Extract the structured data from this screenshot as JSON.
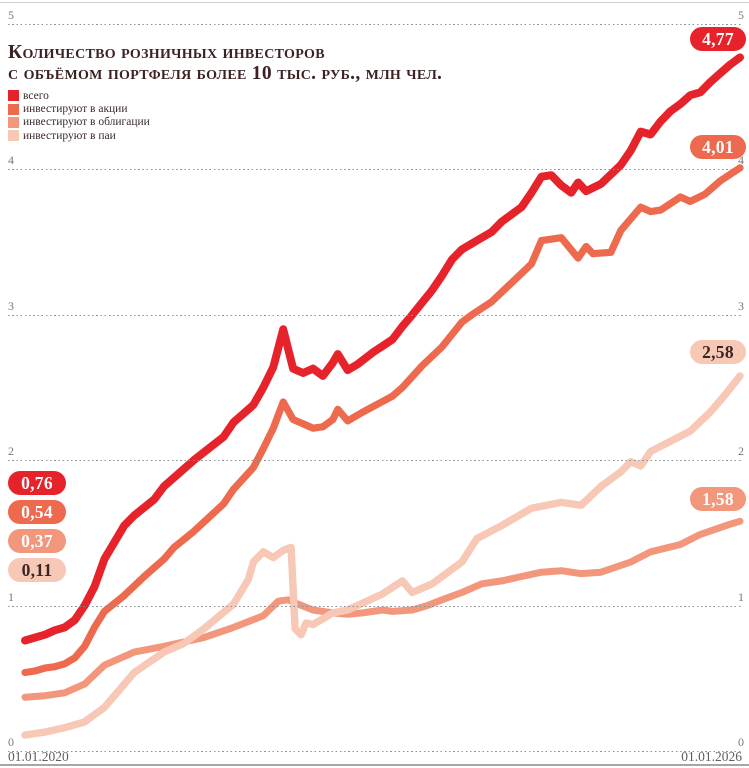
{
  "title": {
    "line1": "Количество розничных инвесторов",
    "line2": "с объёмом портфеля более 10 тыс. руб., млн чел."
  },
  "legend": {
    "items": [
      {
        "label": "всего",
        "color": "#e6232a"
      },
      {
        "label": "инвестируют в акции",
        "color": "#ed6a4e"
      },
      {
        "label": "инвестируют в облигации",
        "color": "#f2977c"
      },
      {
        "label": "инвестируют в паи",
        "color": "#f7c8b5"
      }
    ]
  },
  "x_axis": {
    "start_label": "01.01.2020",
    "end_label": "01.01.2026"
  },
  "badges": {
    "start": [
      {
        "text": "0,76",
        "bg": "#e6232a",
        "fg": "#ffffff"
      },
      {
        "text": "0,54",
        "bg": "#ed6a4e",
        "fg": "#ffffff"
      },
      {
        "text": "0,37",
        "bg": "#f2977c",
        "fg": "#ffffff"
      },
      {
        "text": "0,11",
        "bg": "#f7c8b5",
        "fg": "#3b2424"
      }
    ],
    "end": [
      {
        "text": "4,77",
        "bg": "#e6232a",
        "fg": "#ffffff"
      },
      {
        "text": "4,01",
        "bg": "#ed6a4e",
        "fg": "#ffffff"
      },
      {
        "text": "2,58",
        "bg": "#f7c8b5",
        "fg": "#3b2424"
      },
      {
        "text": "1,58",
        "bg": "#f2977c",
        "fg": "#ffffff"
      }
    ]
  },
  "chart_data": {
    "type": "line",
    "title": "Количество розничных инвесторов с объёмом портфеля более 10 тыс. руб., млн чел.",
    "xlabel": "",
    "ylabel": "млн чел.",
    "x_unit": "months since 01.01.2020",
    "x_range": [
      0,
      72
    ],
    "ylim": [
      0,
      5
    ],
    "y_ticks": [
      0,
      1,
      2,
      3,
      4,
      5
    ],
    "grid": "horizontal dashed, tick labels on both sides",
    "legend_position": "top-left",
    "series": [
      {
        "id": "obligacii",
        "name": "инвестируют в облигации",
        "color": "#f2977c",
        "first_value": 0.37,
        "last_value": 1.58,
        "points": [
          [
            0,
            0.37
          ],
          [
            2,
            0.38
          ],
          [
            4,
            0.4
          ],
          [
            6,
            0.46
          ],
          [
            8,
            0.59
          ],
          [
            11,
            0.68
          ],
          [
            14,
            0.72
          ],
          [
            18,
            0.78
          ],
          [
            21,
            0.85
          ],
          [
            24,
            0.93
          ],
          [
            25.5,
            1.03
          ],
          [
            26.5,
            1.04
          ],
          [
            27.5,
            1.01
          ],
          [
            29,
            0.97
          ],
          [
            31,
            0.95
          ],
          [
            32.5,
            0.94
          ],
          [
            34,
            0.95
          ],
          [
            36,
            0.97
          ],
          [
            37,
            0.96
          ],
          [
            39,
            0.97
          ],
          [
            40.5,
            1.0
          ],
          [
            42,
            1.04
          ],
          [
            44,
            1.09
          ],
          [
            46,
            1.15
          ],
          [
            48,
            1.17
          ],
          [
            50,
            1.2
          ],
          [
            52,
            1.23
          ],
          [
            54,
            1.24
          ],
          [
            56,
            1.22
          ],
          [
            58,
            1.23
          ],
          [
            61,
            1.3
          ],
          [
            63,
            1.37
          ],
          [
            66,
            1.42
          ],
          [
            68,
            1.49
          ],
          [
            71,
            1.56
          ],
          [
            72,
            1.58
          ]
        ]
      },
      {
        "id": "pai",
        "name": "инвестируют в паи",
        "color": "#f7c8b5",
        "first_value": 0.11,
        "last_value": 2.58,
        "points": [
          [
            0,
            0.11
          ],
          [
            2,
            0.13
          ],
          [
            4,
            0.16
          ],
          [
            6,
            0.2
          ],
          [
            8,
            0.3
          ],
          [
            11,
            0.54
          ],
          [
            14,
            0.68
          ],
          [
            16,
            0.74
          ],
          [
            18,
            0.84
          ],
          [
            21,
            1.01
          ],
          [
            22.5,
            1.18
          ],
          [
            23,
            1.3
          ],
          [
            24,
            1.37
          ],
          [
            25,
            1.33
          ],
          [
            26,
            1.38
          ],
          [
            26.8,
            1.4
          ],
          [
            27.2,
            0.84
          ],
          [
            27.8,
            0.8
          ],
          [
            28.3,
            0.88
          ],
          [
            29,
            0.87
          ],
          [
            31,
            0.95
          ],
          [
            32.5,
            0.97
          ],
          [
            36,
            1.08
          ],
          [
            38,
            1.17
          ],
          [
            39,
            1.09
          ],
          [
            41,
            1.15
          ],
          [
            44,
            1.3
          ],
          [
            45.5,
            1.46
          ],
          [
            48,
            1.55
          ],
          [
            51,
            1.67
          ],
          [
            54,
            1.71
          ],
          [
            56,
            1.69
          ],
          [
            58,
            1.82
          ],
          [
            60,
            1.92
          ],
          [
            61,
            1.99
          ],
          [
            62,
            1.96
          ],
          [
            63,
            2.06
          ],
          [
            67,
            2.2
          ],
          [
            69,
            2.33
          ],
          [
            70.5,
            2.45
          ],
          [
            72,
            2.58
          ]
        ]
      },
      {
        "id": "akcii",
        "name": "инвестируют в акции",
        "color": "#ed6a4e",
        "first_value": 0.54,
        "last_value": 4.01,
        "points": [
          [
            0,
            0.54
          ],
          [
            1,
            0.55
          ],
          [
            2,
            0.57
          ],
          [
            3,
            0.58
          ],
          [
            4,
            0.6
          ],
          [
            5,
            0.64
          ],
          [
            6,
            0.72
          ],
          [
            7,
            0.85
          ],
          [
            8,
            0.96
          ],
          [
            10,
            1.07
          ],
          [
            12,
            1.2
          ],
          [
            14,
            1.32
          ],
          [
            15,
            1.4
          ],
          [
            17,
            1.51
          ],
          [
            20,
            1.7
          ],
          [
            21,
            1.8
          ],
          [
            23,
            1.95
          ],
          [
            24,
            2.08
          ],
          [
            25,
            2.22
          ],
          [
            26,
            2.4
          ],
          [
            27,
            2.28
          ],
          [
            28,
            2.25
          ],
          [
            29,
            2.22
          ],
          [
            30,
            2.23
          ],
          [
            31,
            2.28
          ],
          [
            31.5,
            2.35
          ],
          [
            32.5,
            2.27
          ],
          [
            34,
            2.33
          ],
          [
            37,
            2.44
          ],
          [
            38,
            2.5
          ],
          [
            40,
            2.65
          ],
          [
            42,
            2.78
          ],
          [
            44,
            2.95
          ],
          [
            45,
            3.0
          ],
          [
            47,
            3.09
          ],
          [
            49,
            3.22
          ],
          [
            51,
            3.35
          ],
          [
            52,
            3.51
          ],
          [
            54,
            3.53
          ],
          [
            55.7,
            3.39
          ],
          [
            56.5,
            3.47
          ],
          [
            57.2,
            3.42
          ],
          [
            59,
            3.43
          ],
          [
            60,
            3.58
          ],
          [
            62,
            3.74
          ],
          [
            63,
            3.71
          ],
          [
            64,
            3.72
          ],
          [
            66,
            3.81
          ],
          [
            67,
            3.78
          ],
          [
            68.5,
            3.83
          ],
          [
            70,
            3.92
          ],
          [
            72,
            4.01
          ]
        ]
      },
      {
        "id": "vsego",
        "name": "всего",
        "color": "#e6232a",
        "first_value": 0.76,
        "last_value": 4.77,
        "points": [
          [
            0,
            0.76
          ],
          [
            1,
            0.78
          ],
          [
            2,
            0.8
          ],
          [
            3,
            0.83
          ],
          [
            4,
            0.85
          ],
          [
            5,
            0.9
          ],
          [
            6,
            1.0
          ],
          [
            7,
            1.13
          ],
          [
            8,
            1.32
          ],
          [
            10,
            1.55
          ],
          [
            11,
            1.62
          ],
          [
            13,
            1.73
          ],
          [
            14,
            1.82
          ],
          [
            17,
            2.0
          ],
          [
            20,
            2.16
          ],
          [
            21,
            2.26
          ],
          [
            23,
            2.38
          ],
          [
            24,
            2.5
          ],
          [
            25,
            2.64
          ],
          [
            26,
            2.9
          ],
          [
            27,
            2.63
          ],
          [
            28,
            2.6
          ],
          [
            29,
            2.63
          ],
          [
            30,
            2.58
          ],
          [
            31,
            2.67
          ],
          [
            31.5,
            2.73
          ],
          [
            32.5,
            2.62
          ],
          [
            33.5,
            2.66
          ],
          [
            35,
            2.74
          ],
          [
            37,
            2.83
          ],
          [
            38,
            2.92
          ],
          [
            39,
            3.0
          ],
          [
            41,
            3.17
          ],
          [
            42,
            3.27
          ],
          [
            43,
            3.38
          ],
          [
            44,
            3.45
          ],
          [
            46,
            3.53
          ],
          [
            47,
            3.57
          ],
          [
            48,
            3.64
          ],
          [
            50,
            3.74
          ],
          [
            51,
            3.84
          ],
          [
            52,
            3.95
          ],
          [
            53,
            3.96
          ],
          [
            54,
            3.89
          ],
          [
            55,
            3.84
          ],
          [
            55.7,
            3.91
          ],
          [
            56.5,
            3.85
          ],
          [
            58,
            3.9
          ],
          [
            60,
            4.03
          ],
          [
            61,
            4.13
          ],
          [
            62,
            4.26
          ],
          [
            63,
            4.24
          ],
          [
            64,
            4.33
          ],
          [
            65,
            4.4
          ],
          [
            66,
            4.45
          ],
          [
            67,
            4.51
          ],
          [
            68,
            4.53
          ],
          [
            69,
            4.6
          ],
          [
            70,
            4.66
          ],
          [
            71,
            4.72
          ],
          [
            72,
            4.77
          ]
        ]
      }
    ]
  }
}
